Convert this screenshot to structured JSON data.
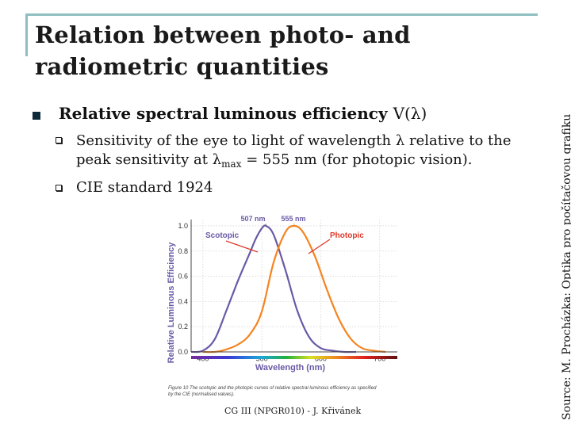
{
  "slide": {
    "title_line1": "Relation between photo- and",
    "title_line2": "radiometric quantities",
    "heading": "Relative spectral luminous efficiency",
    "heading_symbol": "V(λ)",
    "bullet1_line1": "Sensitivity of the eye to light of wavelength λ relative to the",
    "bullet1_line2_a": "peak sensitivity at λ",
    "bullet1_sub": "max",
    "bullet1_line2_b": " = 555 nm (for photopic vision).",
    "bullet2": "CIE standard 1924",
    "source": "Source: M. Procházka: Optika pro počítačovou grafiku",
    "footer": "CG III (NPGR010) - J. Křivánek"
  },
  "figure": {
    "caption_line1": "Figure 10  The scotopic and the photopic curves of relative spectral luminous efficiency as specified",
    "caption_line2": "by the CIE (normalised values)."
  },
  "chart_data": {
    "type": "line",
    "xlabel": "Wavelength (nm)",
    "ylabel": "Relative Luminous Efficiency",
    "xlim": [
      380,
      730
    ],
    "ylim": [
      0,
      1.05
    ],
    "x_ticks": [
      "400",
      "500",
      "600",
      "700"
    ],
    "y_ticks": [
      "0.0",
      "0.2",
      "0.4",
      "0.6",
      "0.8",
      "1.0"
    ],
    "peak_labels": [
      "507 nm",
      "555 nm"
    ],
    "colors": {
      "scotopic": "#6a5aa6",
      "photopic": "#f5841f"
    },
    "series": [
      {
        "name": "Scotopic",
        "x": [
          380,
          400,
          420,
          440,
          460,
          480,
          490,
          500,
          507,
          520,
          540,
          560,
          580,
          600,
          620,
          640,
          660
        ],
        "values": [
          0.0,
          0.01,
          0.1,
          0.33,
          0.57,
          0.79,
          0.9,
          0.98,
          1.0,
          0.93,
          0.65,
          0.33,
          0.12,
          0.03,
          0.01,
          0.0,
          0.0
        ]
      },
      {
        "name": "Photopic",
        "x": [
          400,
          420,
          440,
          460,
          480,
          500,
          520,
          540,
          555,
          570,
          590,
          610,
          630,
          650,
          670,
          690,
          710
        ],
        "values": [
          0.0,
          0.0,
          0.02,
          0.06,
          0.14,
          0.32,
          0.71,
          0.95,
          1.0,
          0.95,
          0.76,
          0.5,
          0.27,
          0.11,
          0.03,
          0.01,
          0.0
        ]
      }
    ]
  }
}
